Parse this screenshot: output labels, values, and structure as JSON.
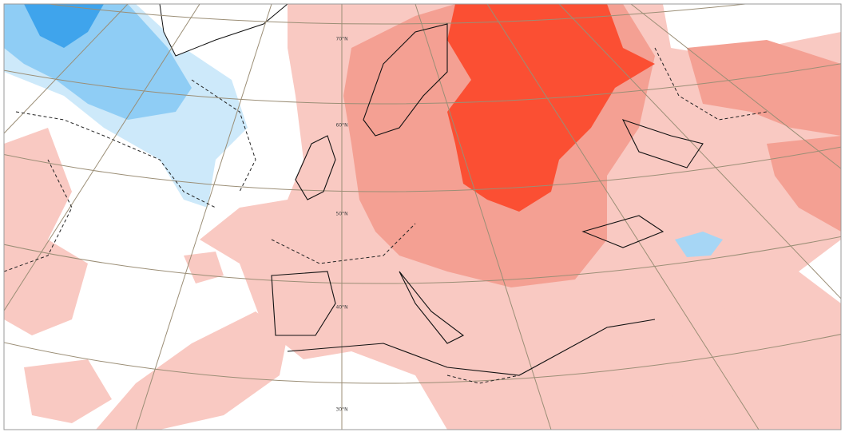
{
  "graticule": {
    "labels": [
      "70°N",
      "60°N",
      "50°N",
      "40°N",
      "30°N"
    ]
  }
}
